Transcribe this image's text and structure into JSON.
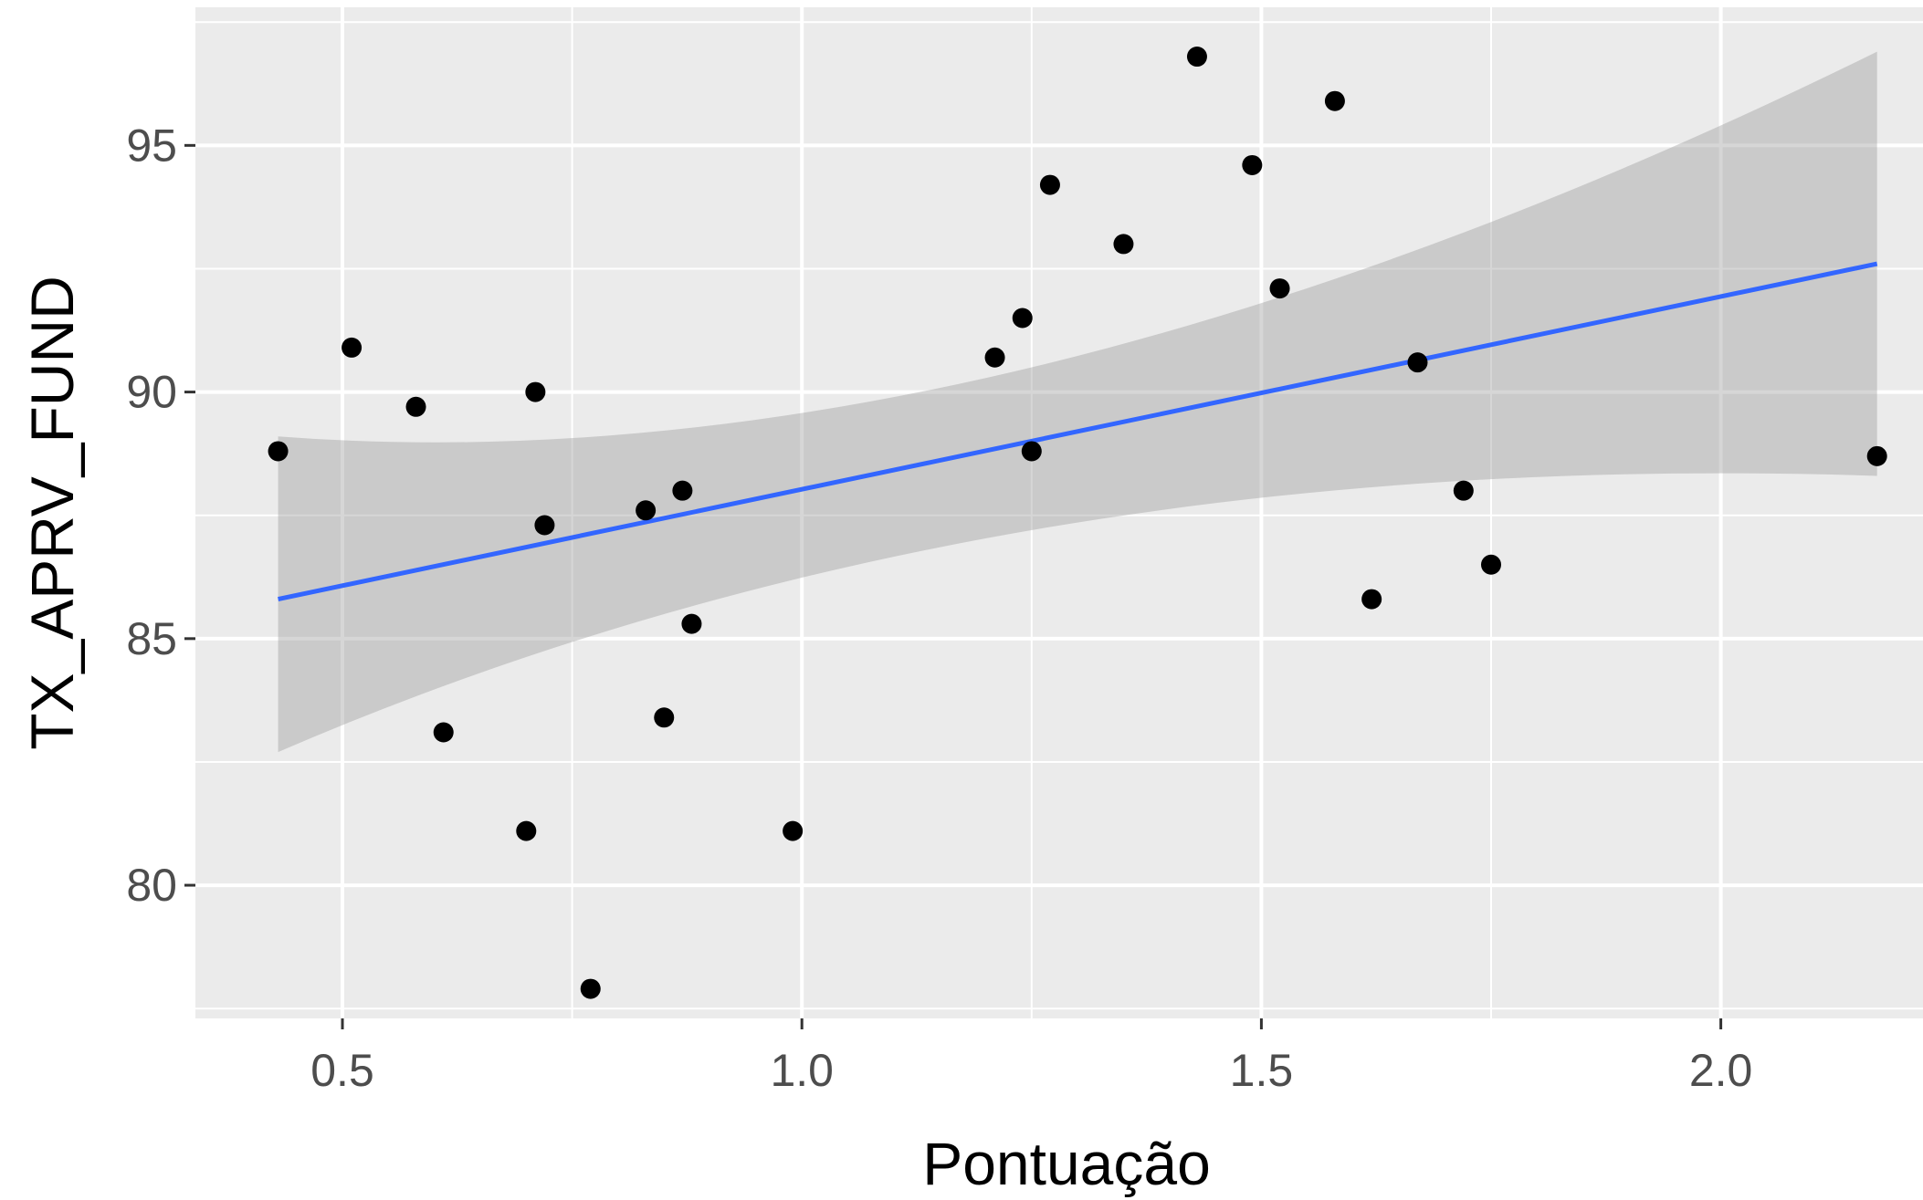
{
  "chart_data": {
    "type": "scatter",
    "xlabel": "Pontuação",
    "ylabel": "TX_APRV_FUND",
    "xlim": [
      0.34,
      2.22
    ],
    "ylim": [
      77.3,
      97.8
    ],
    "x_ticks": [
      0.5,
      1.0,
      1.5,
      2.0
    ],
    "x_tick_labels": [
      "0.5",
      "1.0",
      "1.5",
      "2.0"
    ],
    "y_ticks": [
      80,
      85,
      90,
      95
    ],
    "y_tick_labels": [
      "80",
      "85",
      "90",
      "95"
    ],
    "grid": true,
    "points": [
      {
        "x": 0.43,
        "y": 88.8
      },
      {
        "x": 0.51,
        "y": 90.9
      },
      {
        "x": 0.58,
        "y": 89.7
      },
      {
        "x": 0.61,
        "y": 83.1
      },
      {
        "x": 0.7,
        "y": 81.1
      },
      {
        "x": 0.71,
        "y": 90.0
      },
      {
        "x": 0.72,
        "y": 87.3
      },
      {
        "x": 0.77,
        "y": 77.9
      },
      {
        "x": 0.83,
        "y": 87.6
      },
      {
        "x": 0.85,
        "y": 83.4
      },
      {
        "x": 0.87,
        "y": 88.0
      },
      {
        "x": 0.88,
        "y": 85.3
      },
      {
        "x": 0.99,
        "y": 81.1
      },
      {
        "x": 1.21,
        "y": 90.7
      },
      {
        "x": 1.24,
        "y": 91.5
      },
      {
        "x": 1.25,
        "y": 88.8
      },
      {
        "x": 1.27,
        "y": 94.2
      },
      {
        "x": 1.35,
        "y": 93.0
      },
      {
        "x": 1.43,
        "y": 96.8
      },
      {
        "x": 1.49,
        "y": 94.6
      },
      {
        "x": 1.52,
        "y": 92.1
      },
      {
        "x": 1.58,
        "y": 95.9
      },
      {
        "x": 1.62,
        "y": 85.8
      },
      {
        "x": 1.67,
        "y": 90.6
      },
      {
        "x": 1.72,
        "y": 88.0
      },
      {
        "x": 1.75,
        "y": 86.5
      },
      {
        "x": 2.17,
        "y": 88.7
      }
    ],
    "fit": {
      "method": "lm",
      "color": "#3366FF",
      "x": [
        0.43,
        2.17
      ],
      "y": [
        85.8,
        92.6
      ],
      "ci_lower": [
        82.7,
        88.3
      ],
      "ci_upper": [
        89.1,
        96.9
      ],
      "ci_mid_x": 1.2,
      "ci_mid_lower": 87.2,
      "ci_mid_upper": 90.5
    },
    "colors": {
      "panel": "#EBEBEB",
      "grid": "#FFFFFF",
      "points": "#000000",
      "ribbon": "#BEBEBE"
    }
  }
}
